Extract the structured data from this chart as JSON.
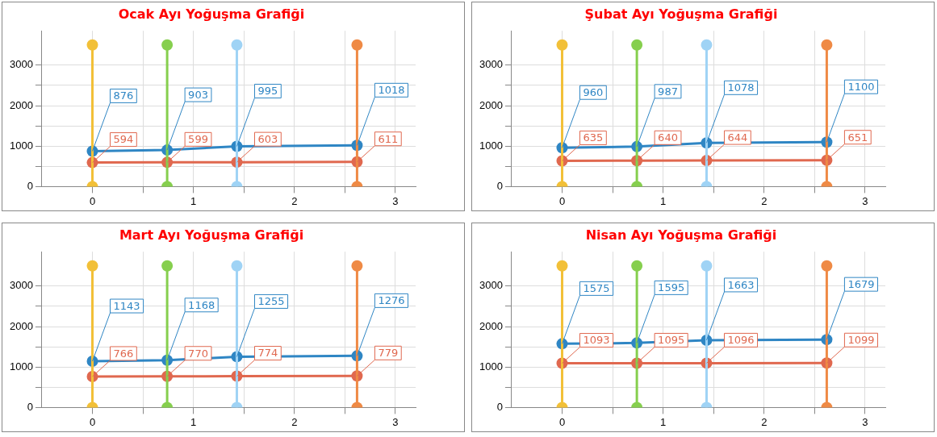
{
  "chart_data": [
    {
      "type": "line",
      "title": "Ocak Ayı Yoğuşma Grafiği",
      "xlim": [
        -0.5,
        3.2
      ],
      "ylim": [
        0,
        3850
      ],
      "xticks": [
        0,
        {
          "value": 0.5,
          "label": null
        },
        1,
        {
          "value": 1.5,
          "label": null
        },
        2,
        {
          "value": 2.5,
          "label": null
        },
        3
      ],
      "yticks": [
        0,
        {
          "value": 500,
          "label": null
        },
        1000,
        {
          "value": 1500,
          "label": null
        },
        2000,
        {
          "value": 2500,
          "label": null
        },
        3000
      ],
      "grid": true,
      "legend": false,
      "marker": "circle",
      "series": [
        {
          "color": "#f2c038",
          "x": [
            0,
            0
          ],
          "values": [
            0,
            3500
          ]
        },
        {
          "color": "#86cf4e",
          "x": [
            0.74,
            0.74
          ],
          "values": [
            0,
            3500
          ]
        },
        {
          "color": "#9fd3f5",
          "x": [
            1.43,
            1.43
          ],
          "values": [
            0,
            3500
          ]
        },
        {
          "color": "#ef8a45",
          "x": [
            2.62,
            2.62
          ],
          "values": [
            0,
            3500
          ]
        },
        {
          "color": "#e0684f",
          "x": [
            0,
            0.74,
            1.43,
            2.62
          ],
          "values": [
            594,
            599,
            603,
            611
          ],
          "value_labels": [
            "594",
            "599",
            "603",
            "611"
          ]
        },
        {
          "color": "#2f86c4",
          "x": [
            0,
            0.74,
            1.43,
            2.62
          ],
          "values": [
            876,
            903,
            995,
            1018
          ],
          "value_labels": [
            "876",
            "903",
            "995",
            "1018"
          ]
        }
      ]
    },
    {
      "type": "line",
      "title": "Şubat Ayı Yoğuşma Grafiği",
      "xlim": [
        -0.5,
        3.2
      ],
      "ylim": [
        0,
        3850
      ],
      "xticks": [
        0,
        {
          "value": 0.5,
          "label": null
        },
        1,
        {
          "value": 1.5,
          "label": null
        },
        2,
        {
          "value": 2.5,
          "label": null
        },
        3
      ],
      "yticks": [
        0,
        {
          "value": 500,
          "label": null
        },
        1000,
        {
          "value": 1500,
          "label": null
        },
        2000,
        {
          "value": 2500,
          "label": null
        },
        3000
      ],
      "grid": true,
      "legend": false,
      "marker": "circle",
      "series": [
        {
          "color": "#f2c038",
          "x": [
            0,
            0
          ],
          "values": [
            0,
            3500
          ]
        },
        {
          "color": "#86cf4e",
          "x": [
            0.74,
            0.74
          ],
          "values": [
            0,
            3500
          ]
        },
        {
          "color": "#9fd3f5",
          "x": [
            1.43,
            1.43
          ],
          "values": [
            0,
            3500
          ]
        },
        {
          "color": "#ef8a45",
          "x": [
            2.62,
            2.62
          ],
          "values": [
            0,
            3500
          ]
        },
        {
          "color": "#e0684f",
          "x": [
            0,
            0.74,
            1.43,
            2.62
          ],
          "values": [
            635,
            640,
            644,
            651
          ],
          "value_labels": [
            "635",
            "640",
            "644",
            "651"
          ]
        },
        {
          "color": "#2f86c4",
          "x": [
            0,
            0.74,
            1.43,
            2.62
          ],
          "values": [
            960,
            987,
            1078,
            1100
          ],
          "value_labels": [
            "960",
            "987",
            "1078",
            "1100"
          ]
        }
      ]
    },
    {
      "type": "line",
      "title": "Mart Ayı Yoğuşma Grafiği",
      "xlim": [
        -0.5,
        3.2
      ],
      "ylim": [
        0,
        3850
      ],
      "xticks": [
        0,
        {
          "value": 0.5,
          "label": null
        },
        1,
        {
          "value": 1.5,
          "label": null
        },
        2,
        {
          "value": 2.5,
          "label": null
        },
        3
      ],
      "yticks": [
        0,
        {
          "value": 500,
          "label": null
        },
        1000,
        {
          "value": 1500,
          "label": null
        },
        2000,
        {
          "value": 2500,
          "label": null
        },
        3000
      ],
      "grid": true,
      "legend": false,
      "marker": "circle",
      "series": [
        {
          "color": "#f2c038",
          "x": [
            0,
            0
          ],
          "values": [
            0,
            3500
          ]
        },
        {
          "color": "#86cf4e",
          "x": [
            0.74,
            0.74
          ],
          "values": [
            0,
            3500
          ]
        },
        {
          "color": "#9fd3f5",
          "x": [
            1.43,
            1.43
          ],
          "values": [
            0,
            3500
          ]
        },
        {
          "color": "#ef8a45",
          "x": [
            2.62,
            2.62
          ],
          "values": [
            0,
            3500
          ]
        },
        {
          "color": "#e0684f",
          "x": [
            0,
            0.74,
            1.43,
            2.62
          ],
          "values": [
            766,
            770,
            774,
            779
          ],
          "value_labels": [
            "766",
            "770",
            "774",
            "779"
          ]
        },
        {
          "color": "#2f86c4",
          "x": [
            0,
            0.74,
            1.43,
            2.62
          ],
          "values": [
            1143,
            1168,
            1255,
            1276
          ],
          "value_labels": [
            "1143",
            "1168",
            "1255",
            "1276"
          ]
        }
      ]
    },
    {
      "type": "line",
      "title": "Nisan Ayı Yoğuşma Grafiği",
      "xlim": [
        -0.5,
        3.2
      ],
      "ylim": [
        0,
        3850
      ],
      "xticks": [
        0,
        {
          "value": 0.5,
          "label": null
        },
        1,
        {
          "value": 1.5,
          "label": null
        },
        2,
        {
          "value": 2.5,
          "label": null
        },
        3
      ],
      "yticks": [
        0,
        {
          "value": 500,
          "label": null
        },
        1000,
        {
          "value": 1500,
          "label": null
        },
        2000,
        {
          "value": 2500,
          "label": null
        },
        3000
      ],
      "grid": true,
      "legend": false,
      "marker": "circle",
      "series": [
        {
          "color": "#f2c038",
          "x": [
            0,
            0
          ],
          "values": [
            0,
            3500
          ]
        },
        {
          "color": "#86cf4e",
          "x": [
            0.74,
            0.74
          ],
          "values": [
            0,
            3500
          ]
        },
        {
          "color": "#9fd3f5",
          "x": [
            1.43,
            1.43
          ],
          "values": [
            0,
            3500
          ]
        },
        {
          "color": "#ef8a45",
          "x": [
            2.62,
            2.62
          ],
          "values": [
            0,
            3500
          ]
        },
        {
          "color": "#e0684f",
          "x": [
            0,
            0.74,
            1.43,
            2.62
          ],
          "values": [
            1093,
            1095,
            1096,
            1099
          ],
          "value_labels": [
            "1093",
            "1095",
            "1096",
            "1099"
          ]
        },
        {
          "color": "#2f86c4",
          "x": [
            0,
            0.74,
            1.43,
            2.62
          ],
          "values": [
            1575,
            1595,
            1663,
            1679
          ],
          "value_labels": [
            "1575",
            "1595",
            "1663",
            "1679"
          ]
        }
      ]
    }
  ]
}
